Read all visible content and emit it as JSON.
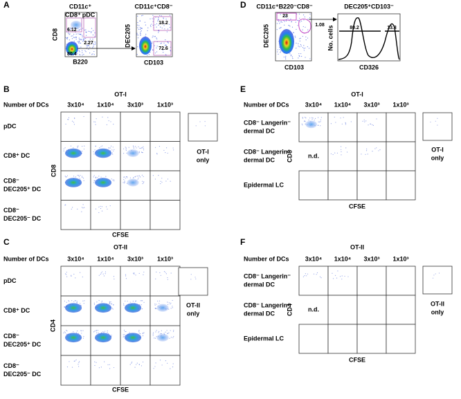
{
  "panels": {
    "A": {
      "label": "A",
      "plot1": {
        "title": "CD11c⁺",
        "gate_labels": [
          "CD8⁺",
          "pDC"
        ],
        "gate_values": [
          6.12,
          2.27,
          80.4
        ],
        "x_label": "B220",
        "y_label": "CD8"
      },
      "plot2": {
        "title": "CD11c⁺CD8⁻",
        "gate_values": [
          18.2,
          72.6
        ],
        "x_label": "CD103",
        "y_label": "DEC205"
      }
    },
    "D": {
      "label": "D",
      "plot1": {
        "title": "CD11c⁺B220⁻CD8⁻",
        "gate_values": [
          23,
          1.08
        ],
        "x_label": "CD103",
        "y_label": "DEC205"
      },
      "plot2": {
        "title": "DEC205⁺CD103⁻",
        "gate_values": [
          80.2,
          13.3
        ],
        "x_label": "CD326",
        "y_label": "No. cells"
      }
    },
    "B": {
      "label": "B",
      "header": "OT-I",
      "row_header": "Number of DCs",
      "columns": [
        "3x10⁴",
        "1x10⁴",
        "3x10³",
        "1x10³"
      ],
      "rows": [
        [
          "pDC"
        ],
        [
          "CD8⁺ DC"
        ],
        [
          "CD8⁻",
          "DEC205⁺ DC"
        ],
        [
          "CD8⁻",
          "DEC205⁻ DC"
        ]
      ],
      "y_label": "CD8",
      "x_label": "CFSE",
      "control": [
        "OT-I",
        "only"
      ]
    },
    "C": {
      "label": "C",
      "header": "OT-II",
      "row_header": "Number of DCs",
      "columns": [
        "3x10⁴",
        "1x10⁴",
        "3x10³",
        "1x10³"
      ],
      "rows": [
        [
          "pDC"
        ],
        [
          "CD8⁺ DC"
        ],
        [
          "CD8⁻",
          "DEC205⁺ DC"
        ],
        [
          "CD8⁻",
          "DEC205⁻ DC"
        ]
      ],
      "y_label": "CD4",
      "x_label": "CFSE",
      "control": [
        "OT-II",
        "only"
      ]
    },
    "E": {
      "label": "E",
      "header": "OT-I",
      "row_header": "Number of DCs",
      "columns": [
        "3x10⁴",
        "1x10⁴",
        "3x10³",
        "1x10³"
      ],
      "rows": [
        [
          "CD8⁻ Langerin⁻",
          "dermal DC"
        ],
        [
          "CD8⁻ Langerin⁺",
          "dermal DC"
        ],
        [
          "Epidermal LC"
        ]
      ],
      "y_label": "CD8",
      "x_label": "CFSE",
      "control": [
        "OT-I",
        "only"
      ],
      "not_done": "n.d."
    },
    "F": {
      "label": "F",
      "header": "OT-II",
      "row_header": "Number of DCs",
      "columns": [
        "3x10⁴",
        "1x10⁴",
        "3x10³",
        "1x10³"
      ],
      "rows": [
        [
          "CD8⁻ Langerin⁻",
          "dermal DC"
        ],
        [
          "CD8⁻ Langerin⁺",
          "dermal DC"
        ],
        [
          "Epidermal LC"
        ]
      ],
      "y_label": "CD4",
      "x_label": "CFSE",
      "control": [
        "OT-II",
        "only"
      ],
      "not_done": "n.d."
    }
  }
}
